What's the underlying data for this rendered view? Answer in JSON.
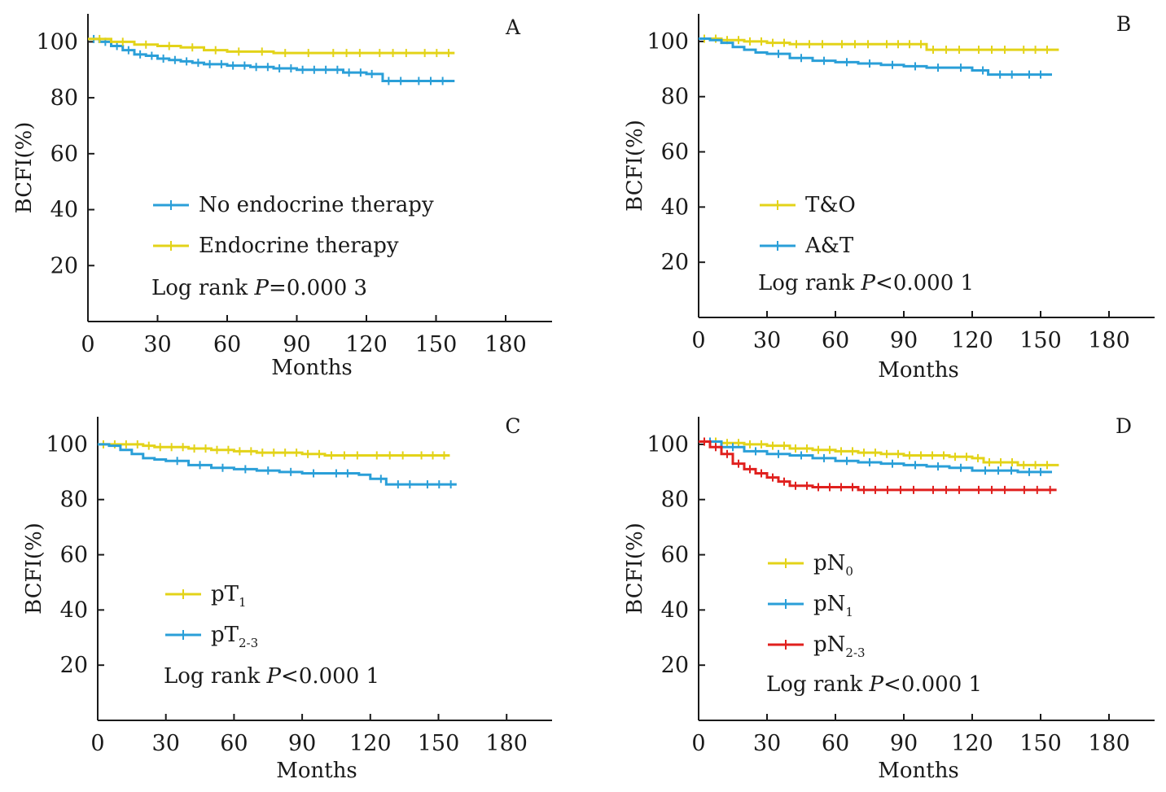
{
  "chart_data": [
    {
      "type": "line",
      "panel": "A",
      "xlabel": "Months",
      "ylabel": "BCFI(%)",
      "xlim": [
        0,
        200
      ],
      "ylim": [
        0,
        110
      ],
      "xticks": [
        0,
        30,
        60,
        90,
        120,
        150,
        180
      ],
      "yticks": [
        20,
        40,
        60,
        80,
        100
      ],
      "annotation": "Log rank P=0.000 3",
      "series": [
        {
          "name": "No endocrine therapy",
          "color": "#2a9fd8",
          "x": [
            0,
            5,
            10,
            15,
            20,
            25,
            30,
            35,
            40,
            45,
            50,
            60,
            70,
            80,
            90,
            100,
            110,
            120,
            127,
            140,
            158
          ],
          "y": [
            101,
            100,
            98.5,
            97,
            95.5,
            95,
            94,
            93.5,
            93,
            92.5,
            92,
            91.5,
            91,
            90.5,
            90,
            90,
            89,
            88.5,
            86,
            86,
            86
          ]
        },
        {
          "name": "Endocrine therapy",
          "color": "#e3d319",
          "x": [
            0,
            10,
            20,
            30,
            40,
            50,
            60,
            70,
            80,
            90,
            100,
            120,
            140,
            158
          ],
          "y": [
            101,
            100,
            99,
            98.5,
            98,
            97,
            96.5,
            96.5,
            96,
            96,
            96,
            96,
            96,
            96
          ]
        }
      ]
    },
    {
      "type": "line",
      "panel": "B",
      "xlabel": "Months",
      "ylabel": "BCFI(%)",
      "xlim": [
        0,
        200
      ],
      "ylim": [
        0,
        110
      ],
      "xticks": [
        0,
        30,
        60,
        90,
        120,
        150,
        180
      ],
      "yticks": [
        20,
        40,
        60,
        80,
        100
      ],
      "annotation": "Log rank P<0.000 1",
      "series": [
        {
          "name": "T&O",
          "color": "#e3d319",
          "x": [
            0,
            10,
            20,
            30,
            40,
            60,
            80,
            95,
            100,
            120,
            140,
            158
          ],
          "y": [
            101,
            100.5,
            100,
            99.5,
            99,
            99,
            99,
            99,
            97,
            97,
            97,
            97
          ]
        },
        {
          "name": "A&T",
          "color": "#2a9fd8",
          "x": [
            0,
            5,
            10,
            15,
            20,
            25,
            30,
            40,
            50,
            60,
            70,
            80,
            90,
            100,
            110,
            120,
            127,
            140,
            155
          ],
          "y": [
            101,
            100.5,
            99.5,
            98,
            97,
            96,
            95.5,
            94,
            93,
            92.5,
            92,
            91.5,
            91,
            90.5,
            90.5,
            89.5,
            88,
            88,
            88
          ]
        }
      ]
    },
    {
      "type": "line",
      "panel": "C",
      "xlabel": "Months",
      "ylabel": "BCFI(%)",
      "xlim": [
        0,
        200
      ],
      "ylim": [
        0,
        110
      ],
      "xticks": [
        0,
        30,
        60,
        90,
        120,
        150,
        180
      ],
      "yticks": [
        20,
        40,
        60,
        80,
        100
      ],
      "annotation": "Log rank P<0.000 1",
      "series": [
        {
          "name": "pT1",
          "color": "#e3d319",
          "x": [
            0,
            10,
            20,
            25,
            30,
            40,
            50,
            60,
            70,
            80,
            90,
            100,
            120,
            140,
            155
          ],
          "y": [
            100,
            100,
            99.5,
            99,
            99,
            98.5,
            98,
            97.5,
            97,
            97,
            96.5,
            96,
            96,
            96,
            96
          ]
        },
        {
          "name": "pT2-3",
          "color": "#2a9fd8",
          "x": [
            0,
            5,
            10,
            15,
            20,
            25,
            30,
            40,
            50,
            60,
            70,
            80,
            90,
            100,
            115,
            120,
            127,
            140,
            158
          ],
          "y": [
            100,
            99.5,
            98,
            96.5,
            95,
            94.5,
            94,
            92.5,
            91.5,
            91,
            90.5,
            90,
            89.5,
            89.5,
            89,
            87.5,
            85.5,
            85.5,
            85.5
          ]
        }
      ]
    },
    {
      "type": "line",
      "panel": "D",
      "xlabel": "Months",
      "ylabel": "BCFI(%)",
      "xlim": [
        0,
        200
      ],
      "ylim": [
        0,
        110
      ],
      "xticks": [
        0,
        30,
        60,
        90,
        120,
        150,
        180
      ],
      "yticks": [
        20,
        40,
        60,
        80,
        100
      ],
      "annotation": "Log rank P<0.000 1",
      "series": [
        {
          "name": "pN0",
          "color": "#e3d319",
          "x": [
            0,
            10,
            20,
            30,
            40,
            50,
            60,
            70,
            80,
            90,
            100,
            110,
            120,
            125,
            140,
            158
          ],
          "y": [
            101,
            100.5,
            100,
            99.5,
            98.5,
            98,
            97.5,
            97,
            96.5,
            96,
            96,
            95.5,
            95,
            93.5,
            92.5,
            92.5
          ]
        },
        {
          "name": "pN1",
          "color": "#2a9fd8",
          "x": [
            0,
            10,
            20,
            30,
            40,
            50,
            60,
            70,
            80,
            90,
            100,
            110,
            120,
            140,
            155
          ],
          "y": [
            101,
            99,
            97.5,
            96.5,
            96,
            95,
            94,
            93.5,
            93,
            92.5,
            92,
            91.5,
            90.5,
            90,
            90
          ]
        },
        {
          "name": "pN2-3",
          "color": "#e0201e",
          "x": [
            0,
            5,
            10,
            15,
            20,
            25,
            30,
            35,
            40,
            50,
            60,
            70,
            80,
            100,
            120,
            140,
            157
          ],
          "y": [
            101,
            99,
            96.5,
            93,
            91,
            89.5,
            88,
            86.5,
            85,
            84.5,
            84.5,
            83.5,
            83.5,
            83.5,
            83.5,
            83.5,
            83.5
          ]
        }
      ]
    }
  ]
}
